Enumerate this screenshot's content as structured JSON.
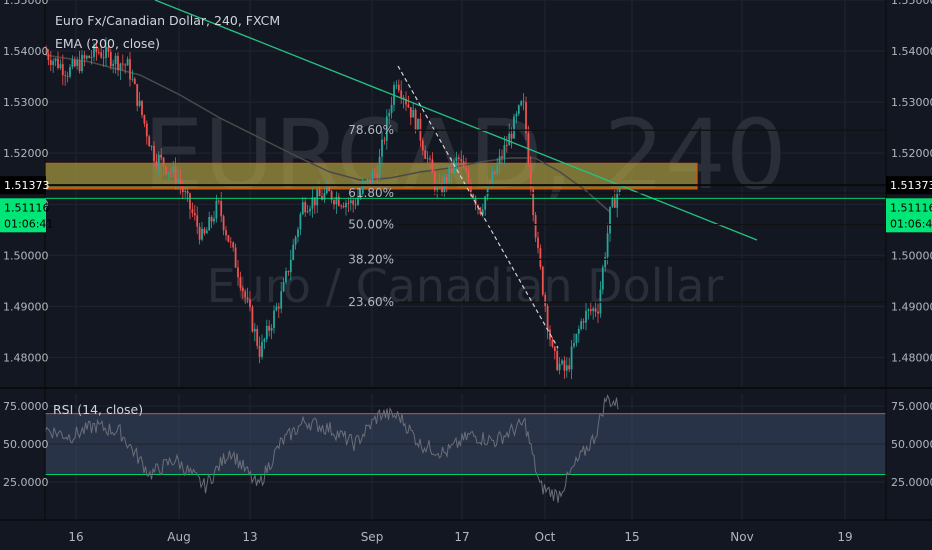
{
  "header": {
    "symbol_line": "Euro Fx/Canadian Dollar, 240, FXCM",
    "ema_label": "EMA (200, close)",
    "rsi_label": "RSI (14, close)"
  },
  "watermark": {
    "ticker": "EURCAD, 240",
    "name": "Euro / Canadian Dollar"
  },
  "colors": {
    "background": "#131722",
    "grid": "#1f2430",
    "up_candle": "#26a69a",
    "down_candle": "#ef5350",
    "bright_green": "#00e676",
    "zone_fill": "#b5a642",
    "zone_border": "#e65100",
    "ema": "#4a4a4a",
    "rsi_line": "#6b6e78",
    "rsi_band": "#3a4a66",
    "trendline": "#26c281",
    "text": "#b2b5be"
  },
  "chart_data": [
    {
      "type": "candlestick",
      "title": "Euro Fx/Canadian Dollar, 240, FXCM",
      "y_range": [
        1.474,
        1.55
      ],
      "y_ticks": [
        "1.55000",
        "1.54000",
        "1.53000",
        "1.52000",
        "1.51000",
        "1.50000",
        "1.49000",
        "1.48000"
      ],
      "x_ticks": [
        "16",
        "Aug",
        "13",
        "Sep",
        "17",
        "Oct",
        "15",
        "Nov",
        "19"
      ],
      "last_price_label": "1.51373",
      "last_price": 1.51373,
      "bid_label": "1.51116",
      "bid_price": 1.51116,
      "countdown": "01:06:41",
      "ema_label": "EMA (200, close)",
      "fib_levels": [
        {
          "label": "78.60%",
          "price": 1.5245
        },
        {
          "label": "61.80%",
          "price": 1.5122
        },
        {
          "label": "50.00%",
          "price": 1.506
        },
        {
          "label": "38.20%",
          "price": 1.4992
        },
        {
          "label": "23.60%",
          "price": 1.4908
        }
      ],
      "resistance_zone": [
        1.513,
        1.518
      ],
      "grid": true
    },
    {
      "type": "line",
      "title": "RSI (14, close)",
      "y_range": [
        0,
        83
      ],
      "y_ticks": [
        "75.0000",
        "50.0000",
        "25.0000"
      ],
      "upper_band": 70,
      "lower_band": 30,
      "grid": true
    }
  ]
}
